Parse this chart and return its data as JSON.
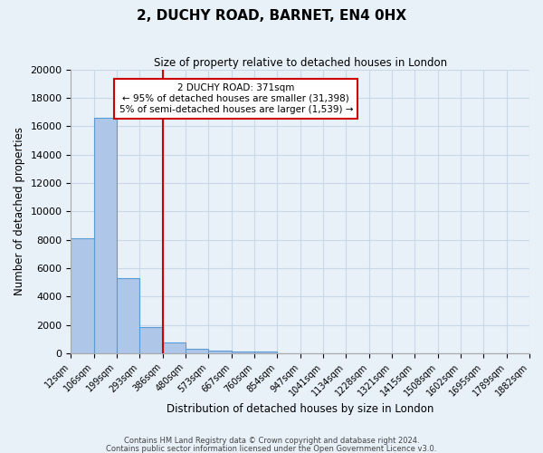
{
  "title": "2, DUCHY ROAD, BARNET, EN4 0HX",
  "subtitle": "Size of property relative to detached houses in London",
  "xlabel": "Distribution of detached houses by size in London",
  "ylabel": "Number of detached properties",
  "bar_values": [
    8100,
    16600,
    5300,
    1850,
    750,
    300,
    200,
    150,
    100,
    0,
    0,
    0,
    0,
    0,
    0,
    0,
    0,
    0,
    0,
    0
  ],
  "bar_labels": [
    "12sqm",
    "106sqm",
    "199sqm",
    "293sqm",
    "386sqm",
    "480sqm",
    "573sqm",
    "667sqm",
    "760sqm",
    "854sqm",
    "947sqm",
    "1041sqm",
    "1134sqm",
    "1228sqm",
    "1321sqm",
    "1415sqm",
    "1508sqm",
    "1602sqm",
    "1695sqm",
    "1789sqm",
    "1882sqm"
  ],
  "bar_color": "#aec6e8",
  "bar_edge_color": "#5b9bd5",
  "grid_color": "#c8d8e8",
  "background_color": "#e8f0f8",
  "vline_color": "#cc0000",
  "annotation_title": "2 DUCHY ROAD: 371sqm",
  "annotation_line1": "← 95% of detached houses are smaller (31,398)",
  "annotation_line2": "5% of semi-detached houses are larger (1,539) →",
  "annotation_box_color": "#ffffff",
  "annotation_border_color": "#cc0000",
  "ylim": [
    0,
    20000
  ],
  "yticks": [
    0,
    2000,
    4000,
    6000,
    8000,
    10000,
    12000,
    14000,
    16000,
    18000,
    20000
  ],
  "footer1": "Contains HM Land Registry data © Crown copyright and database right 2024.",
  "footer2": "Contains public sector information licensed under the Open Government Licence v3.0."
}
